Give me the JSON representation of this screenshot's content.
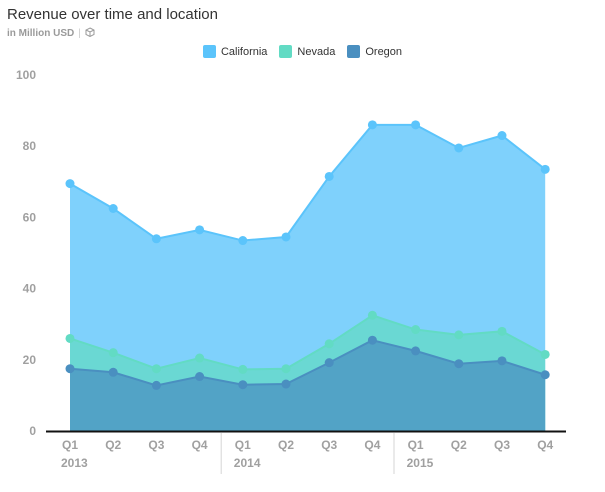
{
  "header": {
    "title": "Revenue over time and location",
    "subtitle": "in Million USD",
    "embed_icon": "cube-icon"
  },
  "colors": {
    "California": "#5bc4fb",
    "Nevada": "#62dbc4",
    "Oregon": "#4a8fc0"
  },
  "chart_data": {
    "type": "area",
    "title": "Revenue over time and location",
    "subtitle": "in Million USD",
    "categories": [
      "Q1",
      "Q2",
      "Q3",
      "Q4",
      "Q1",
      "Q2",
      "Q3",
      "Q4",
      "Q1",
      "Q2",
      "Q3",
      "Q4"
    ],
    "year_labels": [
      {
        "label": "2013",
        "start_index": 0
      },
      {
        "label": "2014",
        "start_index": 4
      },
      {
        "label": "2015",
        "start_index": 8
      }
    ],
    "ylim": [
      0,
      100
    ],
    "yticks": [
      0,
      20,
      40,
      60,
      80,
      100
    ],
    "grid": false,
    "legend": "top-center",
    "series": [
      {
        "name": "California",
        "values": [
          69.5,
          62.5,
          54,
          56.5,
          53.5,
          54.5,
          71.5,
          86,
          86,
          79.5,
          83,
          73.5
        ]
      },
      {
        "name": "Nevada",
        "values": [
          26,
          22,
          17.5,
          20.5,
          17.3,
          17.5,
          24.5,
          32.5,
          28.5,
          27,
          28,
          21.5
        ]
      },
      {
        "name": "Oregon",
        "values": [
          17.5,
          16.5,
          12.8,
          15.3,
          13,
          13.2,
          19.2,
          25.5,
          22.5,
          18.9,
          19.7,
          15.8
        ]
      }
    ]
  }
}
